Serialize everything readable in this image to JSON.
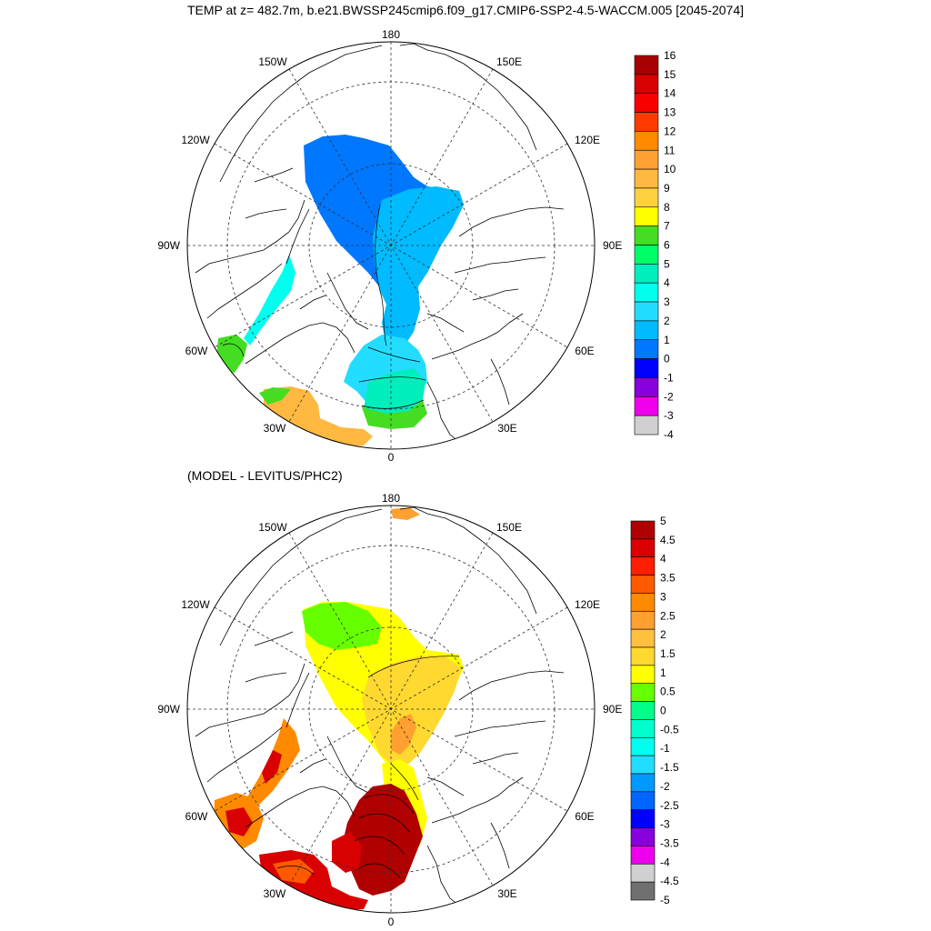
{
  "title": "TEMP at z= 482.7m, b.e21.BWSSP245cmip6.f09_g17.CMIP6-SSP2-4.5-WACCM.005 [2045-2074]",
  "diff_title": "(MODEL - LEVITUS/PHC2)",
  "lon_labels": {
    "top": "180",
    "bottom": "0",
    "left": "90W",
    "right": "90E",
    "w150": "150W",
    "e150": "150E",
    "w120": "120W",
    "e120": "120E",
    "w60": "60W",
    "e60": "60E",
    "w30": "30W",
    "e30": "30E"
  },
  "colorbar_top": {
    "labels": [
      "16",
      "15",
      "14",
      "13",
      "12",
      "11",
      "10",
      "9",
      "8",
      "7",
      "6",
      "5",
      "4",
      "3",
      "2",
      "1",
      "0",
      "-1",
      "-2",
      "-3",
      "-4"
    ],
    "colors": [
      "#a80000",
      "#d80000",
      "#f80000",
      "#ff3a00",
      "#ff8a00",
      "#ffa030",
      "#ffb840",
      "#ffd040",
      "#ffff00",
      "#44dd22",
      "#00ff66",
      "#00eebb",
      "#00ffee",
      "#22ddff",
      "#00bbff",
      "#0077ff",
      "#0000ff",
      "#8800dd",
      "#ee00ee",
      "#d0d0d0"
    ]
  },
  "colorbar_bottom": {
    "labels": [
      "5",
      "4.5",
      "4",
      "3.5",
      "3",
      "2.5",
      "2",
      "1.5",
      "1",
      "0.5",
      "0",
      "-0.5",
      "-1",
      "-1.5",
      "-2",
      "-2.5",
      "-3",
      "-3.5",
      "-4",
      "-4.5",
      "-5"
    ],
    "colors": [
      "#b00000",
      "#d80000",
      "#ff1e00",
      "#ff5a00",
      "#ff8a00",
      "#ffa030",
      "#ffc040",
      "#ffd830",
      "#ffff00",
      "#66ff00",
      "#00ff88",
      "#00ffcc",
      "#00ffee",
      "#22ddff",
      "#0099ff",
      "#0066ff",
      "#0000ff",
      "#8800dd",
      "#ee00ee",
      "#d0d0d0",
      "#707070"
    ]
  },
  "map_top": {
    "fields": [
      {
        "name": "arctic-cold-core",
        "color": "#0077ff"
      },
      {
        "name": "eurasian-basin",
        "color": "#00bbff"
      },
      {
        "name": "fram-strait",
        "color": "#22ddff"
      },
      {
        "name": "baffin-bay",
        "color": "#00ffee"
      },
      {
        "name": "norwegian-sea-warm",
        "color": "#00eebb"
      },
      {
        "name": "norwegian-sea-green",
        "color": "#44dd22"
      },
      {
        "name": "labrador-sea",
        "color": "#44dd22"
      },
      {
        "name": "north-atlantic",
        "color": "#ffb840"
      }
    ]
  },
  "map_bottom": {
    "fields": [
      {
        "name": "beaufort-green",
        "color": "#66ff00"
      },
      {
        "name": "canada-basin-yellow",
        "color": "#ffff00"
      },
      {
        "name": "eurasian-basin-gold",
        "color": "#ffd830"
      },
      {
        "name": "fram-strait-orange",
        "color": "#ffa030"
      },
      {
        "name": "nordic-seas-red",
        "color": "#b00000"
      },
      {
        "name": "baffin-orange",
        "color": "#ff8a00"
      },
      {
        "name": "labrador-orange",
        "color": "#ff8a00"
      },
      {
        "name": "north-atlantic-red",
        "color": "#d80000"
      }
    ]
  }
}
